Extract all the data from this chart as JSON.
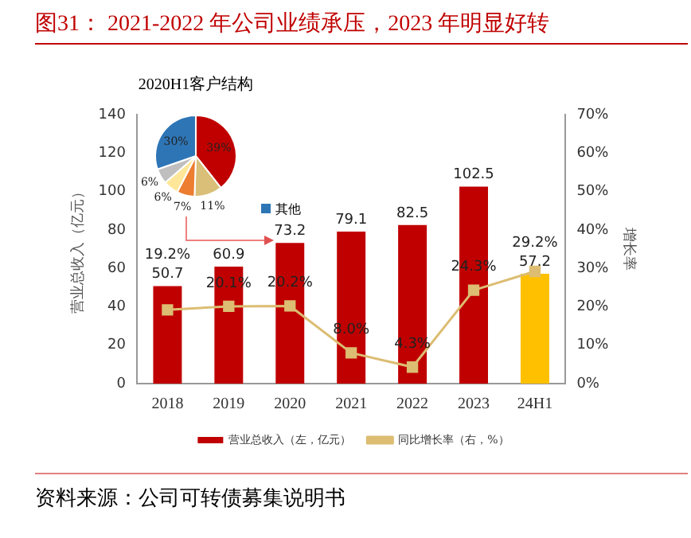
{
  "chart_data": [
    {
      "type": "bar",
      "title": "图31：  2021-2022 年公司业绩承压，2023 年明显好转",
      "ylabel": "营业总收入（亿元）",
      "y2label": "增长率",
      "categories": [
        "2018",
        "2019",
        "2020",
        "2021",
        "2022",
        "2023",
        "24H1"
      ],
      "series": [
        {
          "name": "营业总收入（左，亿元）",
          "type": "bar",
          "color": "#c00000",
          "colors": [
            "#c00000",
            "#c00000",
            "#c00000",
            "#c00000",
            "#c00000",
            "#c00000",
            "#ffc000"
          ],
          "values": [
            50.7,
            60.9,
            73.2,
            79.1,
            82.5,
            102.5,
            57.2
          ],
          "value_labels": [
            "50.7",
            "60.9",
            "73.2",
            "79.1",
            "82.5",
            "102.5",
            "57.2"
          ]
        },
        {
          "name": "同比增长率（右，%）",
          "type": "line",
          "axis": "y2",
          "color": "#dcbd72",
          "marker": "square",
          "values": [
            19.2,
            20.1,
            20.2,
            8.0,
            4.3,
            24.3,
            29.2
          ],
          "value_labels": [
            "19.2%",
            "20.1%",
            "20.2%",
            "8.0%",
            "4.3%",
            "24.3%",
            "29.2%"
          ]
        }
      ],
      "ylim": [
        0,
        140
      ],
      "yticks": [
        0,
        20,
        40,
        60,
        80,
        100,
        120,
        140
      ],
      "y2lim": [
        0,
        70
      ],
      "y2ticks": [
        {
          "value": 0,
          "label": "0%"
        },
        {
          "value": 10,
          "label": "10%"
        },
        {
          "value": 20,
          "label": "20%"
        },
        {
          "value": 30,
          "label": "30%"
        },
        {
          "value": 40,
          "label": "40%"
        },
        {
          "value": 50,
          "label": "50%"
        },
        {
          "value": 60,
          "label": "60%"
        },
        {
          "value": 70,
          "label": "70%"
        }
      ],
      "grid": false,
      "legend": "bottom",
      "annotations": [
        "资料来源：公司可转债募集说明书"
      ]
    },
    {
      "type": "pie",
      "title": "2020H1客户结构",
      "categories": [
        null,
        null,
        null,
        null,
        null,
        "其他"
      ],
      "values": [
        39,
        11,
        7,
        6,
        6,
        30
      ],
      "colors": [
        "#c00000",
        "#d9bf77",
        "#ed7d31",
        "#ffe699",
        "#bfbfbf",
        "#2e75b6"
      ],
      "value_labels": [
        "39%",
        "11%",
        "7%",
        "6%",
        "6%",
        "30%"
      ],
      "legend": "right"
    }
  ]
}
